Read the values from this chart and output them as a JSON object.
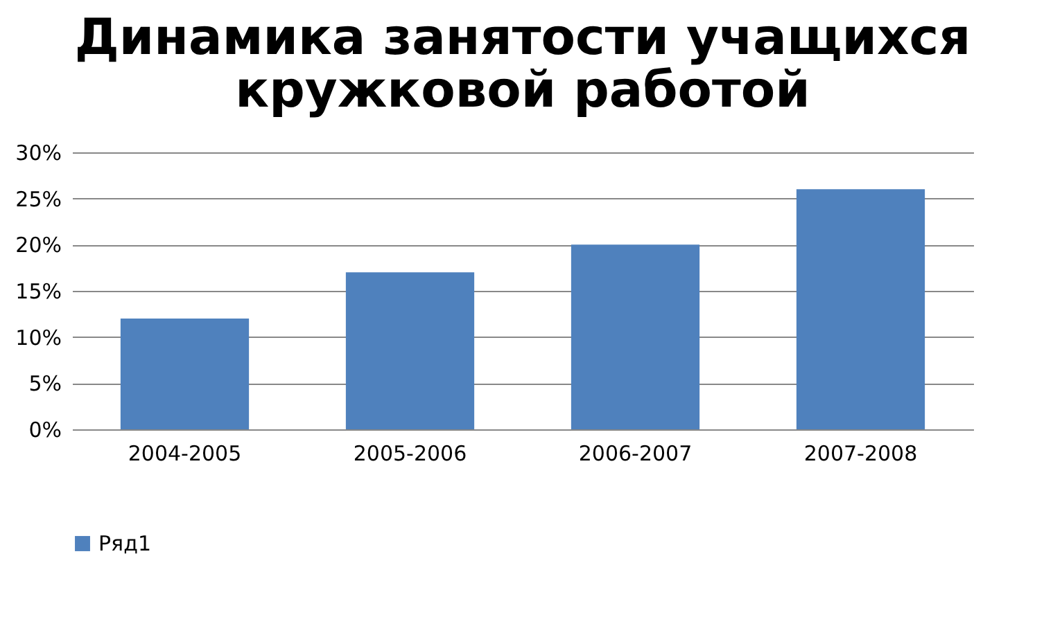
{
  "chart_data": {
    "type": "bar",
    "title": "Динамика занятости учащихся кружковой работой",
    "categories": [
      "2004-2005",
      "2005-2006",
      "2006-2007",
      "2007-2008"
    ],
    "series": [
      {
        "name": "Ряд1",
        "color": "#4f81bd",
        "values": [
          12,
          17,
          20,
          26
        ]
      }
    ],
    "ylim": [
      0,
      30
    ],
    "yticks": [
      {
        "value": 0,
        "label": "0%"
      },
      {
        "value": 5,
        "label": "5%"
      },
      {
        "value": 10,
        "label": "10%"
      },
      {
        "value": 15,
        "label": "15%"
      },
      {
        "value": 20,
        "label": "20%"
      },
      {
        "value": 25,
        "label": "25%"
      },
      {
        "value": 30,
        "label": "30%"
      }
    ],
    "grid": "y",
    "legend": "bottom"
  }
}
